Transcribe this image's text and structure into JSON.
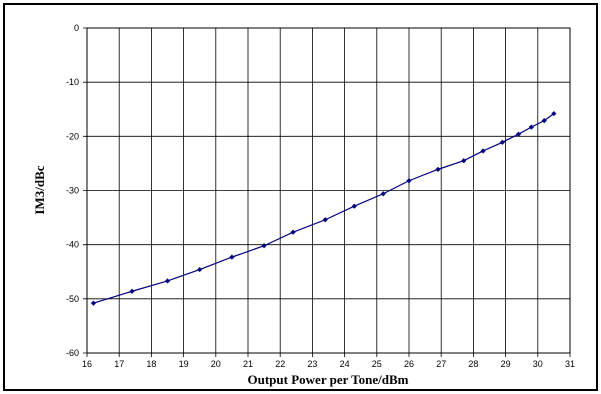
{
  "chart_data": {
    "type": "scatter",
    "title": "",
    "xlabel": "Output Power per Tone/dBm",
    "ylabel": "IM3/dBc",
    "xlim": [
      16,
      31
    ],
    "ylim": [
      -60,
      0
    ],
    "xticks": [
      16,
      17,
      18,
      19,
      20,
      21,
      22,
      23,
      24,
      25,
      26,
      27,
      28,
      29,
      30,
      31
    ],
    "yticks": [
      0,
      -10,
      -20,
      -30,
      -40,
      -50,
      -60
    ],
    "grid": true,
    "line_color": "#000080",
    "series": [
      {
        "x": [
          16.2,
          17.4,
          18.5,
          19.5,
          20.5,
          21.5,
          22.4,
          23.4,
          24.3,
          25.2,
          26.0,
          26.9,
          27.7,
          28.3,
          28.9,
          29.4,
          29.8,
          30.2,
          30.5
        ],
        "y": [
          -50.8,
          -48.6,
          -46.7,
          -44.6,
          -42.3,
          -40.2,
          -37.7,
          -35.4,
          -32.9,
          -30.6,
          -28.2,
          -26.1,
          -24.5,
          -22.7,
          -21.1,
          -19.6,
          -18.3,
          -17.1,
          -15.8
        ]
      }
    ]
  }
}
